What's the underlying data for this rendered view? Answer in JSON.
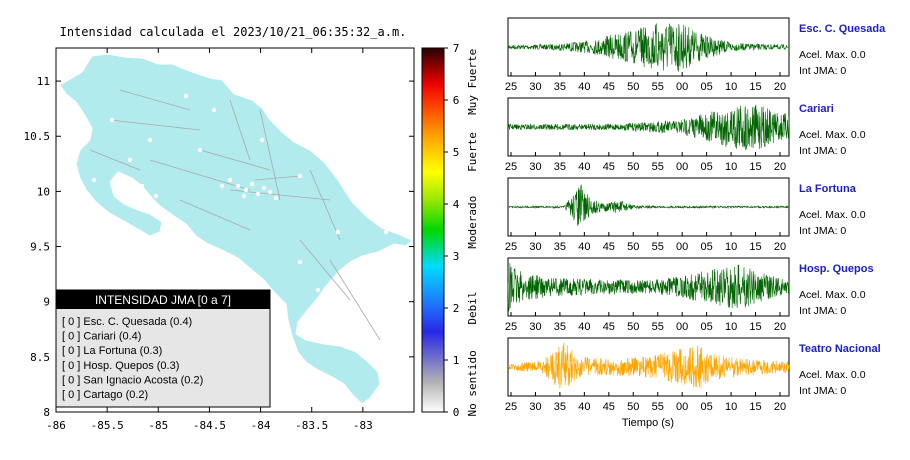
{
  "map": {
    "title": "Intensidad calculada el 2023/10/21_06:35:32_a.m.",
    "lon_ticks": [
      "-86",
      "-85.5",
      "-85",
      "-84.5",
      "-84",
      "-83.5",
      "-83"
    ],
    "lat_ticks": [
      "11",
      "10.5",
      "10",
      "9.5",
      "9",
      "8.5",
      "8"
    ],
    "lon_range": [
      -86,
      -82.5
    ],
    "lat_range": [
      8,
      11.3
    ],
    "background_color": "#b2ebee",
    "legend": {
      "header": "INTENSIDAD JMA [0 a 7]",
      "entries": [
        "[ 0 ]  Esc. C. Quesada (0.4)",
        "[ 0 ]  Cariari (0.4)",
        "[ 0 ]  La Fortuna (0.3)",
        "[ 0 ]  Hosp. Quepos (0.3)",
        "[ 0 ]  San Ignacio Acosta (0.2)",
        "[ 0 ]  Cartago (0.2)"
      ]
    }
  },
  "colorbar": {
    "ticks": [
      "0",
      "1",
      "2",
      "3",
      "4",
      "5",
      "6",
      "7"
    ],
    "range": [
      0,
      7
    ],
    "labels": [
      "No sentido",
      "Debil",
      "Moderado",
      "Fuerte",
      "Muy Fuerte"
    ]
  },
  "chart_data": {
    "type": "line",
    "xlabel": "Tiempo (s)",
    "series": [
      {
        "name": "Esc. C. Quesada",
        "color": "#006400",
        "accel_label": "Acel. Max. 0.0",
        "jma_label": "Int JMA: 0",
        "x_ticks": [
          "25",
          "30",
          "35",
          "40",
          "45",
          "50",
          "55",
          "00",
          "05",
          "10",
          "15",
          "20"
        ],
        "envelope": [
          [
            0,
            0.08
          ],
          [
            0.15,
            0.1
          ],
          [
            0.3,
            0.25
          ],
          [
            0.38,
            0.5
          ],
          [
            0.45,
            0.65
          ],
          [
            0.5,
            0.8
          ],
          [
            0.55,
            1.0
          ],
          [
            0.62,
            0.9
          ],
          [
            0.7,
            0.45
          ],
          [
            0.8,
            0.15
          ],
          [
            1,
            0.08
          ]
        ]
      },
      {
        "name": "Cariari",
        "color": "#006400",
        "accel_label": "Acel. Max. 0.0",
        "jma_label": "Int JMA: 0",
        "x_ticks": [
          "25",
          "30",
          "35",
          "40",
          "45",
          "50",
          "55",
          "00",
          "05",
          "10",
          "15",
          "20"
        ],
        "envelope": [
          [
            0,
            0.1
          ],
          [
            0.4,
            0.12
          ],
          [
            0.6,
            0.25
          ],
          [
            0.72,
            0.55
          ],
          [
            0.82,
            0.95
          ],
          [
            0.9,
            0.8
          ],
          [
            1,
            0.45
          ]
        ]
      },
      {
        "name": "La Fortuna",
        "color": "#006400",
        "accel_label": "Acel. Max. 0.0",
        "jma_label": "Int JMA: 0",
        "x_ticks": [
          "25",
          "30",
          "35",
          "40",
          "45",
          "50",
          "55",
          "00",
          "05",
          "10",
          "15",
          "20"
        ],
        "envelope": [
          [
            0,
            0.03
          ],
          [
            0.2,
            0.04
          ],
          [
            0.26,
            0.9
          ],
          [
            0.29,
            0.35
          ],
          [
            0.34,
            0.15
          ],
          [
            0.4,
            0.25
          ],
          [
            0.45,
            0.06
          ],
          [
            0.55,
            0.04
          ],
          [
            1,
            0.03
          ]
        ]
      },
      {
        "name": "Hosp. Quepos",
        "color": "#006400",
        "accel_label": "Acel. Max. 0.0",
        "jma_label": "Int JMA: 0",
        "x_ticks": [
          "25",
          "30",
          "35",
          "40",
          "45",
          "50",
          "55",
          "00",
          "05",
          "10",
          "15",
          "20"
        ],
        "envelope": [
          [
            0,
            0.95
          ],
          [
            0.05,
            0.55
          ],
          [
            0.15,
            0.35
          ],
          [
            0.3,
            0.3
          ],
          [
            0.5,
            0.25
          ],
          [
            0.62,
            0.4
          ],
          [
            0.72,
            0.65
          ],
          [
            0.82,
            0.85
          ],
          [
            0.9,
            0.55
          ],
          [
            1,
            0.25
          ]
        ]
      },
      {
        "name": "Teatro Nacional",
        "color": "#ffa500",
        "accel_label": "Acel. Max. 0.0",
        "jma_label": "Int JMA: 0",
        "x_ticks": [
          "25",
          "30",
          "35",
          "40",
          "45",
          "50",
          "55",
          "00",
          "05",
          "10",
          "15",
          "20"
        ],
        "envelope": [
          [
            0,
            0.1
          ],
          [
            0.12,
            0.25
          ],
          [
            0.2,
            0.95
          ],
          [
            0.25,
            0.4
          ],
          [
            0.35,
            0.3
          ],
          [
            0.5,
            0.4
          ],
          [
            0.6,
            0.65
          ],
          [
            0.68,
            0.9
          ],
          [
            0.72,
            0.5
          ],
          [
            0.82,
            0.35
          ],
          [
            1,
            0.2
          ]
        ]
      }
    ]
  }
}
